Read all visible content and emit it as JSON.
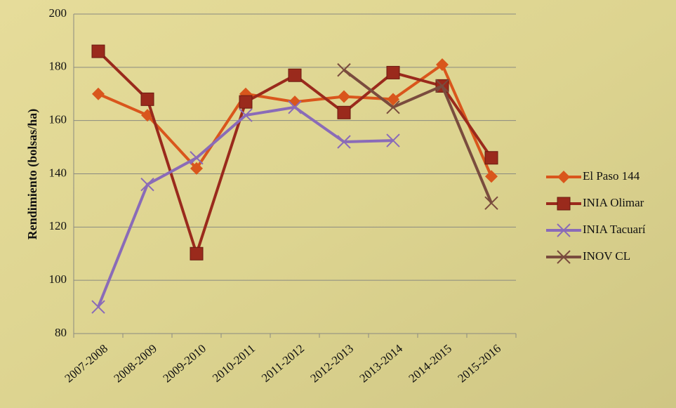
{
  "chart_data": {
    "type": "line",
    "ylabel": "Rendimiento (bolsas/ha)",
    "categories": [
      "2007-2008",
      "2008-2009",
      "2009-2010",
      "2010-2011",
      "2011-2012",
      "2012-2013",
      "2013-2014",
      "2014-2015",
      "2015-2016"
    ],
    "series": [
      {
        "name": "El Paso 144",
        "color": "#d9561c",
        "marker": "diamond",
        "values": [
          170,
          162,
          142,
          170,
          167,
          169,
          168,
          181,
          139
        ]
      },
      {
        "name": "INIA Olimar",
        "color": "#9a2a1c",
        "marker": "square",
        "values": [
          186,
          168,
          110,
          167,
          177,
          163,
          178,
          173,
          146
        ]
      },
      {
        "name": "INIA Tacuarí",
        "color": "#8a6bb8",
        "marker": "x",
        "values": [
          90,
          136,
          146,
          162,
          165,
          152,
          152.5,
          null,
          null
        ]
      },
      {
        "name": "INOV CL",
        "color": "#7a4c3e",
        "marker": "x",
        "values": [
          null,
          null,
          null,
          null,
          null,
          179,
          165,
          173,
          129
        ]
      }
    ],
    "ylim": [
      80,
      200
    ],
    "yticks": [
      80,
      100,
      120,
      140,
      160,
      180,
      200
    ],
    "grid": true
  }
}
